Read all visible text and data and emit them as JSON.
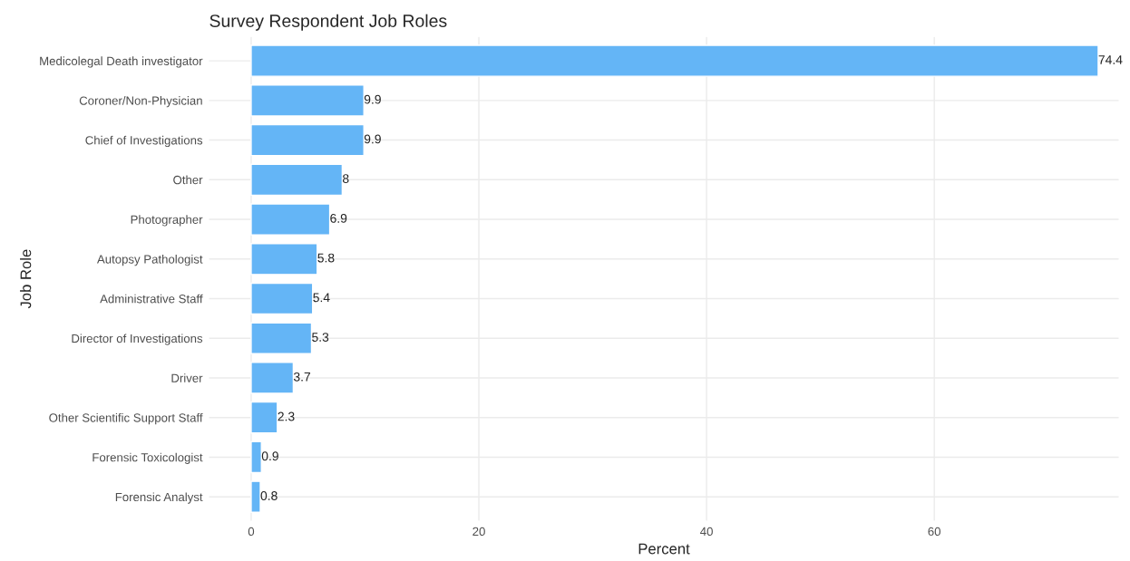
{
  "chart_data": {
    "type": "bar",
    "orientation": "horizontal",
    "title": "Survey Respondent Job Roles",
    "xlabel": "Percent",
    "ylabel": "Job Role",
    "categories": [
      "Medicolegal Death investigator",
      "Coroner/Non-Physician",
      "Chief of Investigations",
      "Other",
      "Photographer",
      "Autopsy Pathologist",
      "Administrative Staff",
      "Director of Investigations",
      "Driver",
      "Other Scientific Support Staff",
      "Forensic Toxicologist",
      "Forensic Analyst"
    ],
    "values": [
      74.4,
      9.9,
      9.9,
      8,
      6.9,
      5.8,
      5.4,
      5.3,
      3.7,
      2.3,
      0.9,
      0.8
    ],
    "color": "#64b5f6",
    "xlim": [
      -3.7,
      76.2
    ],
    "xticks": [
      0,
      20,
      40,
      60
    ],
    "grid": true,
    "data_labels": true
  }
}
